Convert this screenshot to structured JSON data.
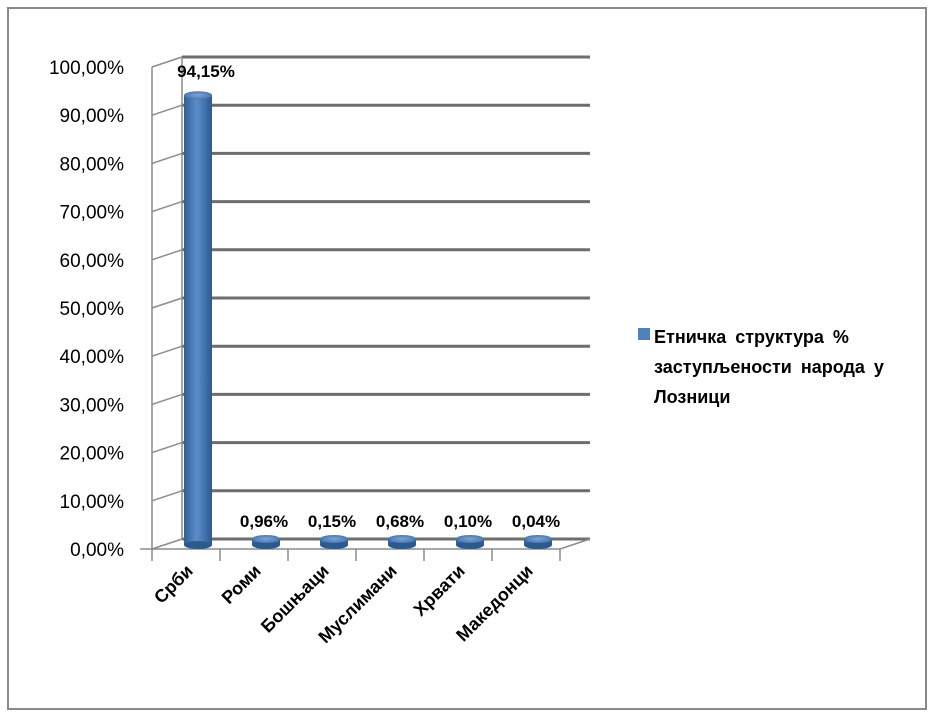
{
  "chart_data": {
    "type": "bar",
    "categories": [
      "Срби",
      "Роми",
      "Бошњаци",
      "Муслимани",
      "Хрвати",
      "Македонци"
    ],
    "series": [
      {
        "name": "Етничка  структура  %  заступљености  народа у Лозници",
        "values": [
          94.15,
          0.96,
          0.15,
          0.68,
          0.1,
          0.04
        ],
        "labels": [
          "94,15%",
          "0,96%",
          "0,15%",
          "0,68%",
          "0,10%",
          "0,04%"
        ]
      }
    ],
    "ylim": [
      0,
      100
    ],
    "yticks": [
      "0,00%",
      "10,00%",
      "20,00%",
      "30,00%",
      "40,00%",
      "50,00%",
      "60,00%",
      "70,00%",
      "80,00%",
      "90,00%",
      "100,00%"
    ],
    "grid": true,
    "legend_position": "right",
    "bar_color": "#4f81bd"
  }
}
